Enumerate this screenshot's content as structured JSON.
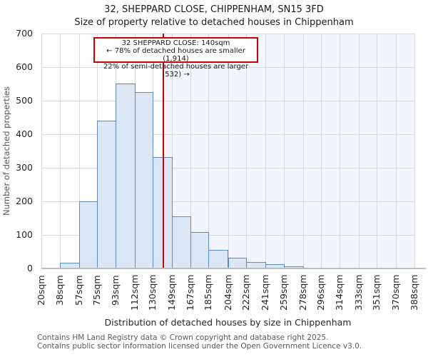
{
  "chart_data": {
    "type": "bar",
    "title": "32, SHEPPARD CLOSE, CHIPPENHAM, SN15 3FD",
    "subtitle": "Size of property relative to detached houses in Chippenham",
    "xlabel": "Distribution of detached houses by size in Chippenham",
    "ylabel": "Number of detached properties",
    "ylim": [
      0,
      700
    ],
    "y_ticks": [
      0,
      100,
      200,
      300,
      400,
      500,
      600,
      700
    ],
    "grid": "on",
    "bin_edges_sqm": [
      20,
      38,
      57,
      75,
      93,
      112,
      130,
      149,
      167,
      185,
      204,
      222,
      241,
      259,
      278,
      296,
      314,
      333,
      351,
      370,
      388
    ],
    "bin_labels": [
      "20sqm",
      "38sqm",
      "57sqm",
      "75sqm",
      "93sqm",
      "112sqm",
      "130sqm",
      "149sqm",
      "167sqm",
      "185sqm",
      "204sqm",
      "222sqm",
      "241sqm",
      "259sqm",
      "278sqm",
      "296sqm",
      "314sqm",
      "333sqm",
      "351sqm",
      "370sqm",
      "388sqm"
    ],
    "values": [
      3,
      17,
      200,
      440,
      550,
      525,
      332,
      155,
      108,
      56,
      31,
      20,
      12,
      7,
      3,
      2,
      2,
      2,
      2,
      0
    ],
    "marker": {
      "value_sqm": 140,
      "annotation_line1": "32 SHEPPARD CLOSE: 140sqm",
      "annotation_line2": "← 78% of detached houses are smaller (1,914)",
      "annotation_line3": "22% of semi-detached houses are larger (532) →"
    },
    "colors": {
      "bar_fill": "#dce7f5",
      "bar_border": "#5b8ac5",
      "marker_red": "#cc0000",
      "shade_right_of_marker": "#f2f5fc",
      "gridline": "#d6d9e0"
    }
  },
  "footer": {
    "line1": "Contains HM Land Registry data © Crown copyright and database right 2025.",
    "line2": "Contains public sector information licensed under the Open Government Licence v3.0."
  }
}
